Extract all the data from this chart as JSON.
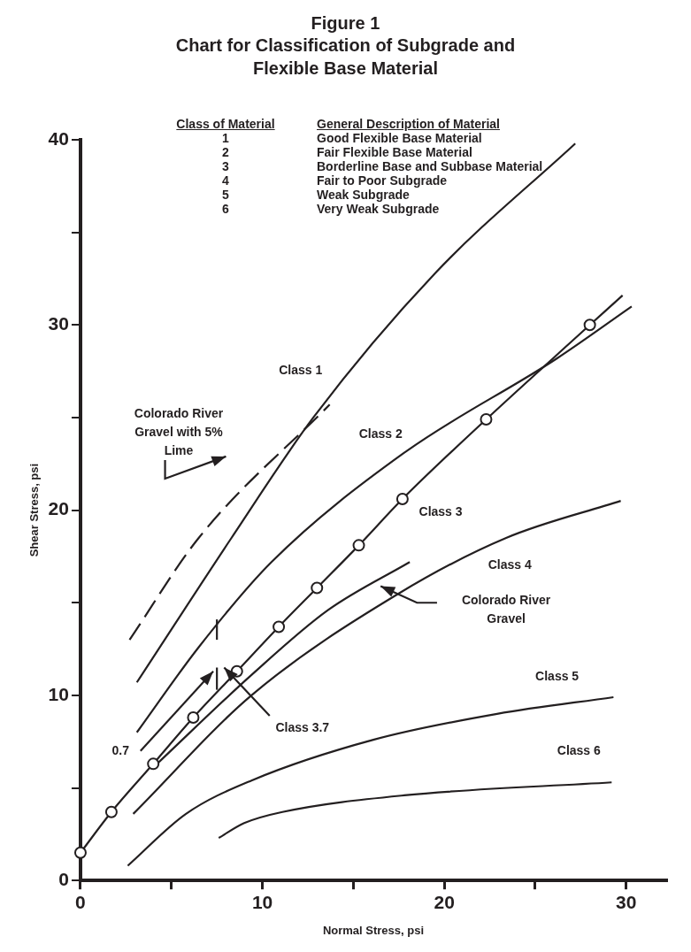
{
  "chart_data": {
    "type": "line",
    "title": "Figure 1",
    "subtitle": "Chart for Classification of Subgrade and Flexible Base Material",
    "xlabel": "Normal Stress, psi",
    "ylabel": "Shear Stress, psi",
    "xlim": [
      0,
      32.2
    ],
    "xticks": [
      0,
      {
        "value": 5,
        "label": null
      },
      10,
      {
        "value": 15,
        "label": null
      },
      20,
      {
        "value": 25,
        "label": null
      },
      30
    ],
    "ylim": [
      0,
      40
    ],
    "yticks": [
      0,
      {
        "value": 5,
        "label": null
      },
      10,
      {
        "value": 15,
        "label": null
      },
      20,
      {
        "value": 25,
        "label": null
      },
      30,
      {
        "value": 35,
        "label": null
      },
      40
    ],
    "legend": false,
    "marker": "none",
    "series": [
      {
        "color": "#231f20",
        "line_style": "dashed",
        "x": [
          2.7,
          6.5,
          13.7
        ],
        "values": [
          13.0,
          18.5,
          25.7
        ]
      },
      {
        "color": "#231f20",
        "x": [
          3.1,
          8.3,
          12.8,
          19.5,
          27.2
        ],
        "values": [
          10.7,
          18.5,
          25.0,
          32.8,
          39.8
        ]
      },
      {
        "color": "#231f20",
        "x": [
          3.1,
          6.5,
          10.5,
          17.8,
          26.2,
          30.3
        ],
        "values": [
          8.0,
          12.6,
          17.2,
          23.1,
          28.2,
          31.0
        ]
      },
      {
        "color": "#231f20",
        "marker": "circle",
        "x": [
          0,
          1.7,
          4.0,
          6.2,
          8.6,
          10.9,
          13.0,
          15.3,
          17.7,
          22.3,
          28.0
        ],
        "values": [
          1.5,
          3.7,
          6.3,
          8.8,
          11.3,
          13.7,
          15.8,
          18.1,
          20.6,
          24.9,
          30.0
        ]
      },
      {
        "color": "#231f20",
        "x": [
          28.0,
          29.8
        ],
        "values": [
          30.0,
          31.6
        ]
      },
      {
        "color": "#231f20",
        "x": [
          4.1,
          9.4,
          13.6,
          18.1
        ],
        "values": [
          6.2,
          11.1,
          14.6,
          17.2
        ]
      },
      {
        "color": "#231f20",
        "x": [
          2.9,
          9.4,
          17.5,
          23.4,
          29.7
        ],
        "values": [
          3.6,
          10.0,
          15.5,
          18.5,
          20.5
        ]
      },
      {
        "color": "#231f20",
        "x": [
          2.6,
          5.8,
          9.4,
          16.1,
          22.9,
          29.3
        ],
        "values": [
          0.8,
          3.6,
          5.4,
          7.6,
          9.0,
          9.9
        ]
      },
      {
        "color": "#231f20",
        "x": [
          7.6,
          9.0,
          11.1,
          17.8,
          29.2
        ],
        "values": [
          2.3,
          3.1,
          3.7,
          4.6,
          5.3
        ]
      }
    ],
    "annotations": [
      "Class of Material",
      "General Description of Material",
      "1",
      "Good Flexible Base Material",
      "2",
      "Fair Flexible Base Material",
      "3",
      "Borderline Base and Subbase Material",
      "4",
      "Fair to Poor Subgrade",
      "5",
      "Weak Subgrade",
      "6",
      "Very Weak Subgrade",
      "Class 1",
      "Class 2",
      "Class 3",
      "Class 4",
      "Class 5",
      "Class 6",
      "Class 3.7",
      "0.7",
      "Colorado River Gravel with 5% Lime",
      "Colorado River Gravel"
    ]
  }
}
